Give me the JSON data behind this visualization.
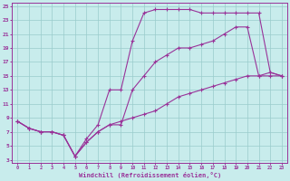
{
  "xlabel": "Windchill (Refroidissement éolien,°C)",
  "bg_color": "#c8ecec",
  "line_color": "#993399",
  "grid_color": "#99cccc",
  "x_min": -0.5,
  "x_max": 23.5,
  "y_min": 2.5,
  "y_max": 25.5,
  "yticks": [
    3,
    5,
    7,
    9,
    11,
    13,
    15,
    17,
    19,
    21,
    23,
    25
  ],
  "xticks": [
    0,
    1,
    2,
    3,
    4,
    5,
    6,
    7,
    8,
    9,
    10,
    11,
    12,
    13,
    14,
    15,
    16,
    17,
    18,
    19,
    20,
    21,
    22,
    23
  ],
  "line1_x": [
    0,
    1,
    2,
    3,
    4,
    5,
    6,
    7,
    8,
    9,
    10,
    11,
    12,
    13,
    14,
    15,
    16,
    17,
    18,
    19,
    20,
    21,
    22,
    23
  ],
  "line1_y": [
    8.5,
    7.5,
    7,
    7,
    6.5,
    3.5,
    6,
    8,
    13,
    13,
    20,
    24,
    24.5,
    24.5,
    24.5,
    24.5,
    24,
    24,
    24,
    24,
    24,
    24,
    15.5,
    15
  ],
  "line2_x": [
    0,
    1,
    2,
    3,
    4,
    5,
    6,
    7,
    8,
    9,
    10,
    11,
    12,
    13,
    14,
    15,
    16,
    17,
    18,
    19,
    20,
    21,
    22,
    23
  ],
  "line2_y": [
    8.5,
    7.5,
    7,
    7,
    6.5,
    3.5,
    5.5,
    7,
    8,
    8,
    13,
    15,
    17,
    18,
    19,
    19,
    19.5,
    20,
    21,
    22,
    22,
    15,
    15.5,
    15
  ],
  "line3_x": [
    0,
    1,
    2,
    3,
    4,
    5,
    6,
    7,
    8,
    9,
    10,
    11,
    12,
    13,
    14,
    15,
    16,
    17,
    18,
    19,
    20,
    21,
    22,
    23
  ],
  "line3_y": [
    8.5,
    7.5,
    7,
    7,
    6.5,
    3.5,
    5.5,
    7,
    8,
    8.5,
    9,
    9.5,
    10,
    11,
    12,
    12.5,
    13,
    13.5,
    14,
    14.5,
    15,
    15,
    15,
    15
  ]
}
